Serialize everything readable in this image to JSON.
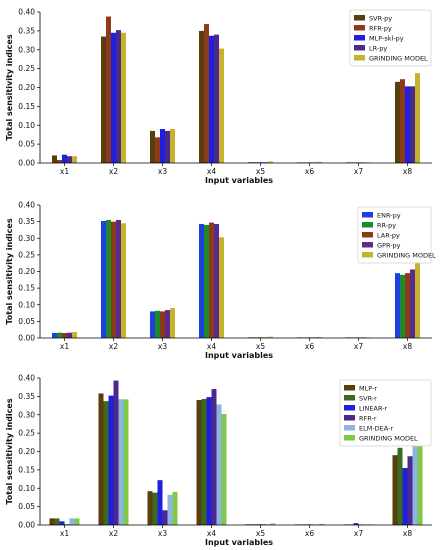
{
  "chart_data": [
    {
      "type": "bar",
      "categories": [
        "x1",
        "x2",
        "x3",
        "x4",
        "x5",
        "x6",
        "x7",
        "x8"
      ],
      "xlabel": "Input variables",
      "ylabel": "Total sensitivity indices",
      "ylim": [
        0,
        0.4
      ],
      "yticks": [
        "0.00",
        "0.05",
        "0.10",
        "0.15",
        "0.20",
        "0.25",
        "0.30",
        "0.35",
        "0.40"
      ],
      "legend_position": "top-right",
      "series": [
        {
          "name": "SVR-py",
          "color": "#5a3d0c",
          "values": [
            0.02,
            0.335,
            0.085,
            0.35,
            0.002,
            0.001,
            0.001,
            0.215
          ]
        },
        {
          "name": "RFR-py",
          "color": "#8c3a1a",
          "values": [
            0.008,
            0.388,
            0.068,
            0.368,
            0.002,
            0.001,
            0.001,
            0.222
          ]
        },
        {
          "name": "MLP-skl-py",
          "color": "#1f1fe0",
          "values": [
            0.022,
            0.345,
            0.09,
            0.337,
            0.002,
            0.001,
            0.001,
            0.203
          ]
        },
        {
          "name": "LR-py",
          "color": "#4b2a8c",
          "values": [
            0.018,
            0.352,
            0.085,
            0.34,
            0.002,
            0.001,
            0.001,
            0.203
          ]
        },
        {
          "name": "GRINDING MODEL",
          "color": "#c7b32b",
          "values": [
            0.018,
            0.345,
            0.09,
            0.303,
            0.004,
            0.003,
            0.001,
            0.238
          ]
        }
      ]
    },
    {
      "type": "bar",
      "categories": [
        "x1",
        "x2",
        "x3",
        "x4",
        "x5",
        "x6",
        "x7",
        "x8"
      ],
      "xlabel": "Input variables",
      "ylabel": "Total sensitivity indices",
      "ylim": [
        0,
        0.4
      ],
      "yticks": [
        "0.00",
        "0.05",
        "0.10",
        "0.15",
        "0.20",
        "0.25",
        "0.30",
        "0.35",
        "0.40"
      ],
      "legend_position": "top-right",
      "series": [
        {
          "name": "ENR-py",
          "color": "#1f3fe0",
          "values": [
            0.015,
            0.352,
            0.08,
            0.343,
            0.002,
            0.001,
            0.001,
            0.195
          ]
        },
        {
          "name": "RR-py",
          "color": "#1e8a2a",
          "values": [
            0.016,
            0.355,
            0.082,
            0.34,
            0.002,
            0.001,
            0.001,
            0.19
          ]
        },
        {
          "name": "LAR-py",
          "color": "#8c3a1a",
          "values": [
            0.015,
            0.35,
            0.08,
            0.347,
            0.002,
            0.001,
            0.001,
            0.195
          ]
        },
        {
          "name": "GPR-py",
          "color": "#5a2a8c",
          "values": [
            0.016,
            0.355,
            0.084,
            0.343,
            0.002,
            0.001,
            0.001,
            0.206
          ]
        },
        {
          "name": "GRINDING MODEL",
          "color": "#c7b32b",
          "values": [
            0.018,
            0.345,
            0.09,
            0.303,
            0.004,
            0.003,
            0.001,
            0.238
          ]
        }
      ]
    },
    {
      "type": "bar",
      "categories": [
        "x1",
        "x2",
        "x3",
        "x4",
        "x5",
        "x6",
        "x7",
        "x8"
      ],
      "xlabel": "Input variables",
      "ylabel": "Total sensitivity indices",
      "ylim": [
        0,
        0.4
      ],
      "yticks": [
        "0.00",
        "0.05",
        "0.10",
        "0.15",
        "0.20",
        "0.25",
        "0.30",
        "0.35",
        "0.40"
      ],
      "legend_position": "top-right",
      "series": [
        {
          "name": "MLP-r",
          "color": "#5a3d0c",
          "values": [
            0.018,
            0.358,
            0.092,
            0.34,
            0.002,
            0.001,
            0.001,
            0.19
          ]
        },
        {
          "name": "SVR-r",
          "color": "#3d6b1e",
          "values": [
            0.018,
            0.337,
            0.088,
            0.343,
            0.002,
            0.001,
            0.001,
            0.21
          ]
        },
        {
          "name": "LINEAR-r",
          "color": "#1f1fe0",
          "values": [
            0.01,
            0.352,
            0.122,
            0.348,
            0.002,
            0.001,
            0.005,
            0.155
          ]
        },
        {
          "name": "RFR-r",
          "color": "#4b2a8c",
          "values": [
            0.002,
            0.393,
            0.04,
            0.37,
            0.002,
            0.001,
            0.001,
            0.187
          ]
        },
        {
          "name": "ELM-DEA-r",
          "color": "#8fb4e0",
          "values": [
            0.018,
            0.342,
            0.082,
            0.328,
            0.002,
            0.001,
            0.001,
            0.225
          ]
        },
        {
          "name": "GRINDING MODEL",
          "color": "#7ec84a",
          "values": [
            0.018,
            0.342,
            0.09,
            0.302,
            0.004,
            0.003,
            0.001,
            0.238
          ]
        }
      ]
    }
  ]
}
